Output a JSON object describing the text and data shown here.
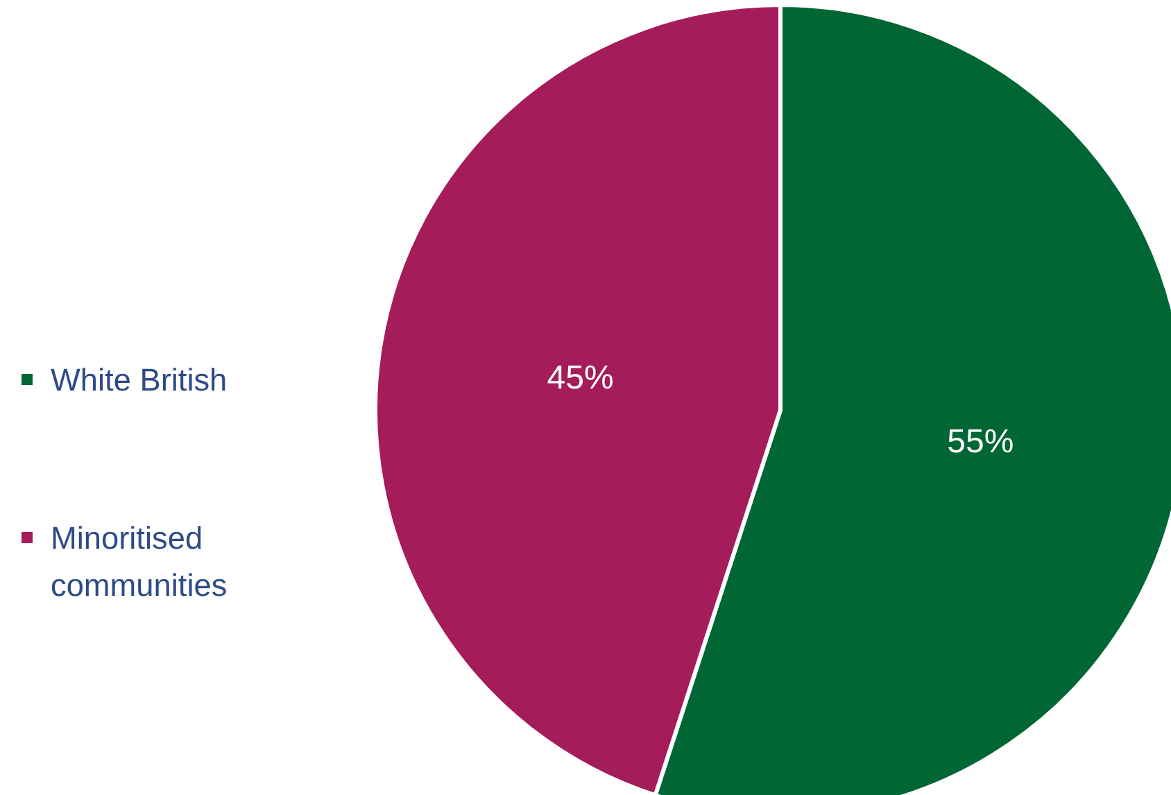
{
  "chart_data": {
    "type": "pie",
    "categories": [
      "White British",
      "Minoritised communities"
    ],
    "values": [
      55,
      45
    ],
    "colors": [
      "#006633",
      "#a51c5a"
    ],
    "value_labels": [
      "55%",
      "45%"
    ],
    "legend": "left"
  }
}
